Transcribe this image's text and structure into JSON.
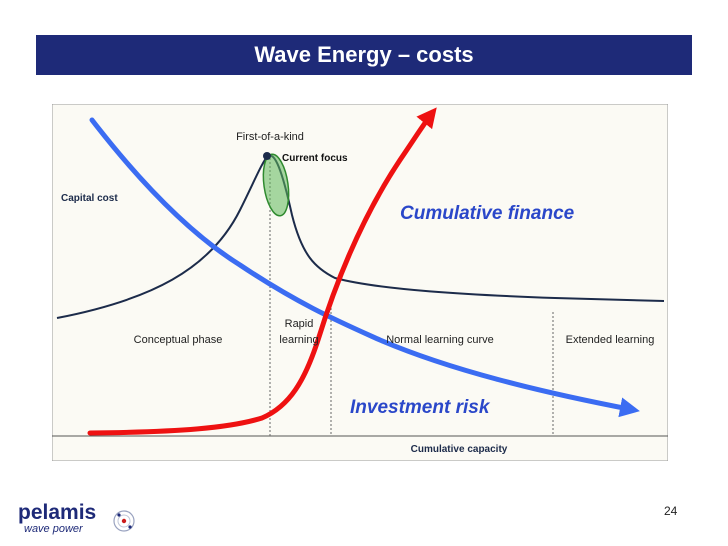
{
  "header": {
    "title": "Wave Energy – costs"
  },
  "diagram": {
    "labels": {
      "first_of_a_kind": "First-of-a-kind",
      "current_focus": "Current focus",
      "capital_cost": "Capital cost",
      "cumulative_finance": "Cumulative finance",
      "investment_risk": "Investment risk",
      "cumulative_capacity": "Cumulative capacity"
    },
    "phases": {
      "conceptual": "Conceptual phase",
      "rapid_line1": "Rapid",
      "rapid_line2": "learning",
      "normal": "Normal learning curve",
      "extended": "Extended learning"
    },
    "colors": {
      "capital_cost_curve": "#1c2b4a",
      "investment_risk_curve": "#3b6cf2",
      "cumulative_finance_curve": "#ee1111",
      "focus_ellipse": "#5fb85a",
      "text_blue": "#2a47c9",
      "panel_bg": "#fbfaf4",
      "title_bar": "#1e2a78"
    }
  },
  "logo": {
    "brand": "pelamis",
    "tagline": "wave power",
    "icon": "pelamis-logo-icon"
  },
  "footer": {
    "page_number": "24"
  }
}
